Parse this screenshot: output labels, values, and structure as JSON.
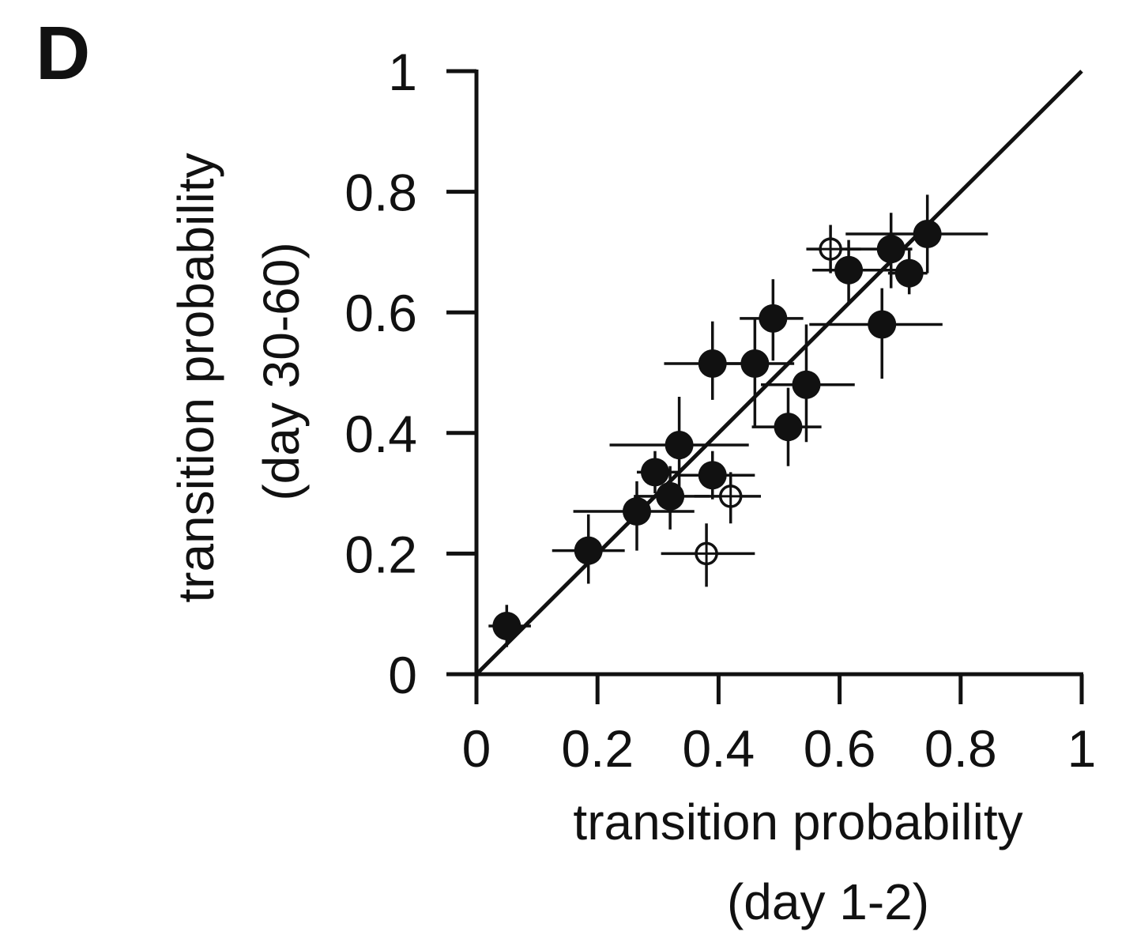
{
  "panel_label": "D",
  "chart_data": {
    "type": "scatter",
    "xlabel": [
      "transition probability",
      "(day 1-2)"
    ],
    "ylabel": [
      "transition probability",
      "(day 30-60)"
    ],
    "xlim": [
      0,
      1
    ],
    "ylim": [
      0,
      1
    ],
    "xticks": [
      0,
      0.2,
      0.4,
      0.6,
      0.8,
      1
    ],
    "yticks": [
      0,
      0.2,
      0.4,
      0.6,
      0.8,
      1
    ],
    "xtick_labels": [
      "0",
      "0.2",
      "0.4",
      "0.6",
      "0.8",
      "1"
    ],
    "ytick_labels": [
      "0",
      "0.2",
      "0.4",
      "0.6",
      "0.8",
      "1"
    ],
    "reference_line": {
      "type": "identity",
      "from": [
        0,
        0
      ],
      "to": [
        1,
        1
      ]
    },
    "grid": false,
    "legend": "none",
    "colors": {
      "ink": "#111111",
      "background": "#ffffff"
    },
    "series": [
      {
        "marker": "filled-circle",
        "points": [
          {
            "x": 0.05,
            "y": 0.08,
            "xerr": [
              0.02,
              0.09
            ],
            "yerr": [
              0.045,
              0.115
            ]
          },
          {
            "x": 0.185,
            "y": 0.205,
            "xerr": [
              0.125,
              0.245
            ],
            "yerr": [
              0.15,
              0.265
            ]
          },
          {
            "x": 0.265,
            "y": 0.27,
            "xerr": [
              0.16,
              0.36
            ],
            "yerr": [
              0.205,
              0.32
            ]
          },
          {
            "x": 0.295,
            "y": 0.335,
            "xerr": [
              0.265,
              0.335
            ],
            "yerr": [
              0.3,
              0.37
            ]
          },
          {
            "x": 0.32,
            "y": 0.295,
            "xerr": [
              0.26,
              0.385
            ],
            "yerr": [
              0.24,
              0.345
            ]
          },
          {
            "x": 0.335,
            "y": 0.38,
            "xerr": [
              0.22,
              0.45
            ],
            "yerr": [
              0.3,
              0.46
            ]
          },
          {
            "x": 0.39,
            "y": 0.33,
            "xerr": [
              0.335,
              0.46
            ],
            "yerr": [
              0.29,
              0.37
            ]
          },
          {
            "x": 0.39,
            "y": 0.515,
            "xerr": [
              0.31,
              0.45
            ],
            "yerr": [
              0.455,
              0.585
            ]
          },
          {
            "x": 0.46,
            "y": 0.515,
            "xerr": [
              0.4,
              0.525
            ],
            "yerr": [
              0.41,
              0.59
            ]
          },
          {
            "x": 0.49,
            "y": 0.59,
            "xerr": [
              0.435,
              0.54
            ],
            "yerr": [
              0.52,
              0.655
            ]
          },
          {
            "x": 0.515,
            "y": 0.41,
            "xerr": [
              0.455,
              0.57
            ],
            "yerr": [
              0.345,
              0.475
            ]
          },
          {
            "x": 0.545,
            "y": 0.48,
            "xerr": [
              0.47,
              0.625
            ],
            "yerr": [
              0.385,
              0.58
            ]
          },
          {
            "x": 0.615,
            "y": 0.67,
            "xerr": [
              0.555,
              0.7
            ],
            "yerr": [
              0.615,
              0.72
            ]
          },
          {
            "x": 0.67,
            "y": 0.58,
            "xerr": [
              0.55,
              0.77
            ],
            "yerr": [
              0.49,
              0.64
            ]
          },
          {
            "x": 0.685,
            "y": 0.705,
            "xerr": [
              0.61,
              0.72
            ],
            "yerr": [
              0.64,
              0.765
            ]
          },
          {
            "x": 0.715,
            "y": 0.665,
            "xerr": [
              0.68,
              0.745
            ],
            "yerr": [
              0.63,
              0.705
            ]
          },
          {
            "x": 0.745,
            "y": 0.73,
            "xerr": [
              0.61,
              0.845
            ],
            "yerr": [
              0.665,
              0.795
            ]
          }
        ]
      },
      {
        "marker": "open-circle-cross",
        "points": [
          {
            "x": 0.38,
            "y": 0.2,
            "xerr": [
              0.305,
              0.46
            ],
            "yerr": [
              0.145,
              0.25
            ]
          },
          {
            "x": 0.42,
            "y": 0.295,
            "xerr": [
              0.36,
              0.47
            ],
            "yerr": [
              0.25,
              0.335
            ]
          },
          {
            "x": 0.585,
            "y": 0.705,
            "xerr": [
              0.545,
              0.635
            ],
            "yerr": [
              0.665,
              0.745
            ]
          }
        ]
      }
    ]
  }
}
